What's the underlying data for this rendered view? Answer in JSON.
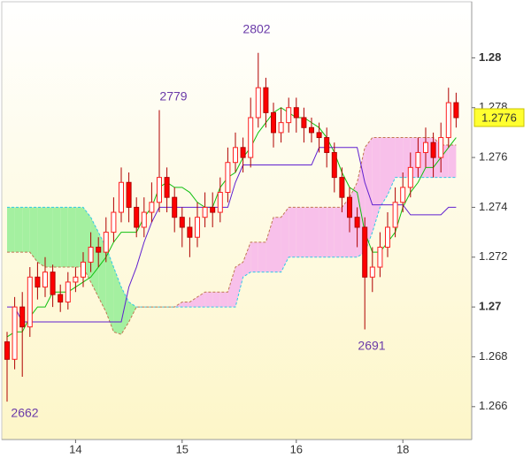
{
  "chart_data": {
    "type": "candlestick",
    "categories": [
      null,
      null,
      null,
      null,
      null,
      null,
      null,
      null,
      null,
      "14",
      null,
      null,
      null,
      null,
      null,
      null,
      null,
      null,
      null,
      null,
      null,
      null,
      null,
      "15",
      null,
      null,
      null,
      null,
      null,
      null,
      null,
      null,
      null,
      null,
      null,
      null,
      null,
      null,
      "16",
      null,
      null,
      null,
      null,
      null,
      null,
      null,
      null,
      null,
      null,
      null,
      null,
      null,
      "18",
      null,
      null,
      null,
      null,
      null,
      null,
      null
    ],
    "open": [
      1.2686,
      1.2679,
      1.27,
      1.2692,
      1.2712,
      1.2708,
      1.2714,
      1.2705,
      1.2702,
      1.271,
      1.2712,
      1.2718,
      1.2724,
      1.2722,
      1.273,
      1.2738,
      1.275,
      1.274,
      1.2732,
      1.2738,
      1.2742,
      1.2752,
      1.2744,
      1.2736,
      1.2732,
      1.2728,
      1.2736,
      1.274,
      1.2738,
      1.2746,
      1.2758,
      1.2764,
      1.276,
      1.2776,
      1.2788,
      1.2778,
      1.277,
      1.2774,
      1.278,
      1.2776,
      1.2772,
      1.277,
      1.2768,
      1.2762,
      1.2752,
      1.2744,
      1.2736,
      1.2732,
      1.2712,
      1.2716,
      1.2724,
      1.2732,
      1.2742,
      1.2748,
      1.2756,
      1.2762,
      1.2766,
      1.276,
      1.2768,
      1.2782
    ],
    "high": [
      1.269,
      1.2704,
      1.2706,
      1.2716,
      1.2718,
      1.272,
      1.2717,
      1.2709,
      1.2714,
      1.2716,
      1.2722,
      1.273,
      1.2728,
      1.2736,
      1.2744,
      1.2756,
      1.2754,
      1.2744,
      1.2744,
      1.275,
      1.2779,
      1.2756,
      1.2748,
      1.274,
      1.2736,
      1.2742,
      1.2746,
      1.2746,
      1.2752,
      1.2764,
      1.277,
      1.2768,
      1.2784,
      1.2802,
      1.2792,
      1.2782,
      1.278,
      1.2784,
      1.2784,
      1.278,
      1.2776,
      1.2774,
      1.2772,
      1.2766,
      1.2756,
      1.2748,
      1.274,
      1.2736,
      1.2724,
      1.273,
      1.2738,
      1.2748,
      1.2754,
      1.2762,
      1.2768,
      1.2772,
      1.277,
      1.2774,
      1.2788,
      1.2786
    ],
    "low": [
      1.2662,
      1.2675,
      1.2672,
      1.2688,
      1.2703,
      1.2704,
      1.27,
      1.2698,
      1.2699,
      1.2706,
      1.2708,
      1.2714,
      1.2716,
      1.2718,
      1.2726,
      1.2734,
      1.2734,
      1.2728,
      1.2728,
      1.2734,
      1.2738,
      1.2738,
      1.273,
      1.2724,
      1.272,
      1.2724,
      1.2732,
      1.2732,
      1.2734,
      1.2742,
      1.2754,
      1.2754,
      1.2756,
      1.2772,
      1.2772,
      1.2764,
      1.2766,
      1.277,
      1.277,
      1.2766,
      1.2766,
      1.2762,
      1.2756,
      1.2746,
      1.2738,
      1.273,
      1.2724,
      1.2691,
      1.2706,
      1.2712,
      1.272,
      1.2728,
      1.2738,
      1.2744,
      1.2752,
      1.2756,
      1.2752,
      1.2754,
      1.2764,
      1.2772
    ],
    "close": [
      1.2679,
      1.27,
      1.2692,
      1.2712,
      1.2708,
      1.2714,
      1.2705,
      1.2702,
      1.271,
      1.2712,
      1.2718,
      1.2724,
      1.2722,
      1.273,
      1.2738,
      1.275,
      1.274,
      1.2732,
      1.2738,
      1.2742,
      1.2752,
      1.2744,
      1.2736,
      1.2732,
      1.2728,
      1.2736,
      1.274,
      1.2738,
      1.2746,
      1.2758,
      1.2764,
      1.276,
      1.2776,
      1.2788,
      1.2778,
      1.277,
      1.2774,
      1.278,
      1.2776,
      1.2772,
      1.277,
      1.2768,
      1.2762,
      1.2752,
      1.2744,
      1.2736,
      1.2732,
      1.2712,
      1.2716,
      1.2724,
      1.2732,
      1.2742,
      1.2748,
      1.2756,
      1.2762,
      1.2766,
      1.276,
      1.2768,
      1.2782,
      1.2776
    ],
    "up_color": "#ff2020",
    "down_color": "#ff0000",
    "wick_color": "#b00000",
    "lines": [
      {
        "color": "#10c010",
        "values": [
          1.2688,
          1.269,
          1.269,
          1.2696,
          1.27,
          1.27,
          1.2706,
          1.2706,
          1.2706,
          1.2708,
          1.271,
          1.2712,
          1.2716,
          1.272,
          1.2726,
          1.273,
          1.273,
          1.273,
          1.2736,
          1.274,
          1.2748,
          1.275,
          1.2748,
          1.2748,
          1.2746,
          1.2742,
          1.274,
          1.274,
          1.2748,
          1.2752,
          1.2754,
          1.276,
          1.2764,
          1.277,
          1.2774,
          1.2778,
          1.278,
          1.2778,
          1.2776,
          1.2776,
          1.2774,
          1.2772,
          1.2768,
          1.2762,
          1.2754,
          1.2748,
          1.2746,
          1.273,
          1.2722,
          1.2722,
          1.2726,
          1.273,
          1.274,
          1.2746,
          1.275,
          1.2756,
          1.2756,
          1.276,
          1.2764,
          1.2768
        ]
      },
      {
        "color": "#6020d0",
        "values": [
          1.27,
          1.27,
          1.2694,
          1.2694,
          1.2694,
          1.2694,
          1.2694,
          1.2694,
          1.2694,
          1.2694,
          1.2694,
          1.2694,
          1.2694,
          1.2694,
          1.2694,
          1.2694,
          1.2708,
          1.2716,
          1.2726,
          1.2734,
          1.274,
          1.274,
          1.274,
          1.274,
          1.274,
          1.274,
          1.274,
          1.274,
          1.274,
          1.274,
          1.275,
          1.2757,
          1.2757,
          1.2757,
          1.2757,
          1.2757,
          1.2757,
          1.2757,
          1.2757,
          1.2757,
          1.2757,
          1.2764,
          1.2764,
          1.2764,
          1.2764,
          1.2764,
          1.2764,
          1.275,
          1.2741,
          1.2741,
          1.2741,
          1.2741,
          1.2741,
          1.2737,
          1.2737,
          1.2737,
          1.2737,
          1.2737,
          1.274,
          1.274
        ]
      }
    ],
    "cloud": {
      "span_a": {
        "color": "#30c8e8",
        "values": [
          1.274,
          1.274,
          1.274,
          1.274,
          1.274,
          1.274,
          1.274,
          1.274,
          1.274,
          1.274,
          1.274,
          1.2736,
          1.273,
          1.2724,
          1.2716,
          1.2708,
          1.2702,
          1.27,
          1.27,
          1.27,
          1.27,
          1.27,
          1.27,
          1.27,
          1.27,
          1.27,
          1.27,
          1.27,
          1.27,
          1.27,
          1.27,
          1.2712,
          1.2714,
          1.2714,
          1.2714,
          1.2714,
          1.2714,
          1.272,
          1.272,
          1.272,
          1.272,
          1.272,
          1.272,
          1.272,
          1.272,
          1.272,
          1.272,
          1.2722,
          1.273,
          1.274,
          1.2745,
          1.2752,
          1.2752,
          1.2752,
          1.2752,
          1.2752,
          1.2752,
          1.2752,
          1.2752,
          1.2752
        ]
      },
      "span_b": {
        "color": "#c07850",
        "values": [
          1.2722,
          1.2722,
          1.2722,
          1.2722,
          1.2718,
          1.2716,
          1.2716,
          1.2716,
          1.2716,
          1.2716,
          1.2716,
          1.271,
          1.2704,
          1.2698,
          1.269,
          1.2689,
          1.2694,
          1.27,
          1.27,
          1.27,
          1.27,
          1.27,
          1.27,
          1.2702,
          1.2702,
          1.2704,
          1.2706,
          1.2706,
          1.2706,
          1.2706,
          1.2716,
          1.2718,
          1.2726,
          1.2726,
          1.2726,
          1.2736,
          1.2736,
          1.274,
          1.274,
          1.274,
          1.274,
          1.274,
          1.274,
          1.274,
          1.274,
          1.2744,
          1.275,
          1.2764,
          1.2768,
          1.2768,
          1.2768,
          1.2768,
          1.2768,
          1.2768,
          1.2768,
          1.2768,
          1.2768,
          1.2765,
          1.2765,
          1.2765
        ]
      },
      "bull_fill": "#a4f0a0",
      "bear_fill": "#f8c0ea"
    },
    "ylim": [
      1.26468,
      1.28225
    ],
    "yticks": [
      1.266,
      1.268,
      1.27,
      1.272,
      1.274,
      1.276,
      1.278,
      1.28
    ],
    "major_yticks": [
      1.27,
      1.28
    ],
    "last_price": 1.2776,
    "last_price_color": "#ffff30",
    "annotations": [
      "2662",
      "2802",
      "2779",
      "2691"
    ]
  }
}
